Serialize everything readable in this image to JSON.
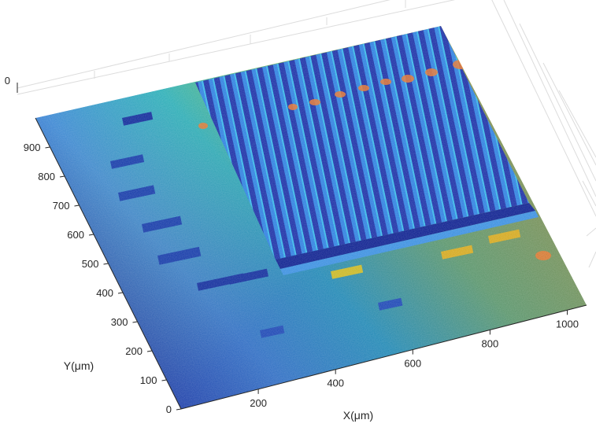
{
  "chart_data": {
    "type": "surface",
    "colormap": "parula",
    "xlabel": "X(μm)",
    "ylabel": "Y(μm)",
    "xlim": [
      0,
      1050
    ],
    "ylim": [
      0,
      1000
    ],
    "grid": true,
    "x_ticks": [
      "200",
      "400",
      "600",
      "800",
      "1000"
    ],
    "y_ticks": [
      "0",
      "100",
      "200",
      "300",
      "400",
      "500",
      "600",
      "700",
      "800",
      "900"
    ],
    "z_ticks": [
      "0"
    ],
    "surface_features": [
      "vertical ridge array (upper right)",
      "horizontal trench (middle)",
      "pad structures (left and bottom)"
    ]
  }
}
